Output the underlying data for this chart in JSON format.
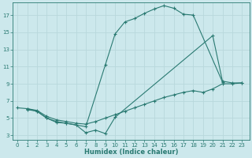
{
  "bg_color": "#cce8ec",
  "grid_color": "#b8d8dc",
  "line_color": "#2a7a72",
  "line_width": 0.8,
  "marker": "+",
  "marker_size": 3,
  "marker_edge_width": 0.8,
  "xlabel": "Humidex (Indice chaleur)",
  "xlabel_fontsize": 6,
  "tick_fontsize": 5,
  "yticks": [
    3,
    5,
    7,
    9,
    11,
    13,
    15,
    17
  ],
  "xticks": [
    0,
    1,
    2,
    3,
    4,
    5,
    6,
    7,
    8,
    9,
    10,
    11,
    12,
    13,
    14,
    15,
    16,
    17,
    18,
    19,
    20,
    21,
    22,
    23
  ],
  "xlim": [
    -0.5,
    23.8
  ],
  "ylim": [
    2.5,
    18.5
  ],
  "line1_x": [
    1,
    2,
    3,
    4,
    5,
    6,
    7,
    9,
    10,
    11,
    12,
    13,
    14,
    15,
    16,
    17,
    18,
    21
  ],
  "line1_y": [
    6,
    5.8,
    5.0,
    4.5,
    4.4,
    4.2,
    4.0,
    11.2,
    14.8,
    16.2,
    16.6,
    17.2,
    17.7,
    18.1,
    17.8,
    17.1,
    17.0,
    9.2
  ],
  "line2_x": [
    0,
    1,
    2,
    3,
    4,
    5,
    6,
    7,
    8,
    9,
    10,
    11,
    12,
    13,
    14,
    15,
    16,
    17,
    18,
    19,
    20,
    21,
    22,
    23
  ],
  "line2_y": [
    6.2,
    6.1,
    5.9,
    5.2,
    4.8,
    4.6,
    4.4,
    4.3,
    4.6,
    5.0,
    5.4,
    5.8,
    6.2,
    6.6,
    7.0,
    7.4,
    7.7,
    8.0,
    8.2,
    8.0,
    8.4,
    9.0,
    9.0,
    9.1
  ],
  "line3_x": [
    1,
    2,
    3,
    4,
    5,
    6,
    7,
    8,
    9,
    10,
    20,
    21,
    22,
    23
  ],
  "line3_y": [
    6.1,
    5.8,
    5.0,
    4.6,
    4.4,
    4.2,
    3.3,
    3.6,
    3.2,
    5.1,
    14.6,
    9.3,
    9.1,
    9.1
  ]
}
